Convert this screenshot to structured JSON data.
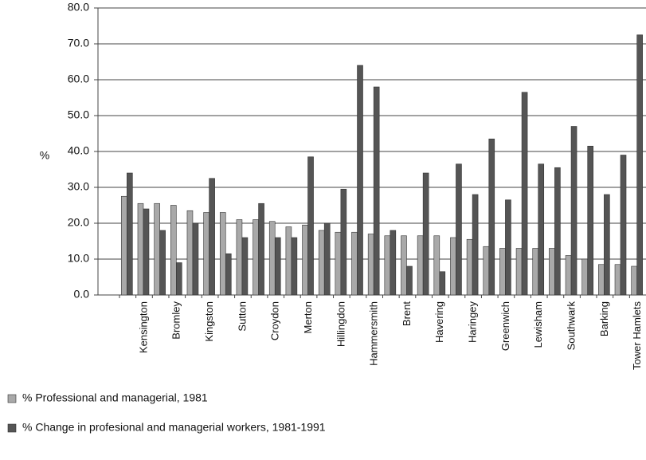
{
  "chart_data": {
    "type": "bar",
    "y_label": "%",
    "categories": [
      null,
      "Kensington",
      null,
      "Bromley",
      null,
      "Kingston",
      null,
      "Sutton",
      null,
      "Croydon",
      null,
      "Merton",
      null,
      "Hillingdon",
      null,
      "Hammersmith",
      null,
      "Brent",
      null,
      "Havering",
      null,
      "Haringey",
      null,
      "Greenwich",
      null,
      "Lewisham",
      null,
      "Southwark",
      null,
      "Barking",
      null,
      "Tower Hamlets"
    ],
    "series": [
      {
        "name": "% Professional and managerial, 1981",
        "color": "#a9a9a9",
        "values": [
          27.5,
          25.5,
          25.5,
          25,
          23.5,
          23,
          23,
          21,
          21,
          20.5,
          19,
          19.5,
          18,
          17.5,
          17.5,
          17,
          16.5,
          16.5,
          16.5,
          16.5,
          16,
          15.5,
          13.5,
          13,
          13,
          13,
          13,
          11,
          10,
          8.5,
          8.5,
          8
        ]
      },
      {
        "name": "% Change in profesional and managerial workers, 1981-1991",
        "color": "#555555",
        "values": [
          34,
          24,
          18,
          9,
          20,
          32.5,
          11.5,
          16,
          25.5,
          16,
          16,
          38.5,
          20,
          29.5,
          64,
          58,
          18,
          8,
          34,
          6.5,
          36.5,
          28,
          43.5,
          26.5,
          56.5,
          36.5,
          35.5,
          47,
          41.5,
          28,
          39,
          72.5
        ]
      }
    ],
    "ylim": [
      0,
      80
    ],
    "yticks": [
      {
        "value": 0,
        "label": "0.0"
      },
      {
        "value": 10,
        "label": "10.0"
      },
      {
        "value": 20,
        "label": "20.0"
      },
      {
        "value": 30,
        "label": "30.0"
      },
      {
        "value": 40,
        "label": "40.0"
      },
      {
        "value": 50,
        "label": "50.0"
      },
      {
        "value": 60,
        "label": "60.0"
      },
      {
        "value": 70,
        "label": "70.0"
      },
      {
        "value": 80,
        "label": "80.0"
      }
    ],
    "grid": true
  }
}
